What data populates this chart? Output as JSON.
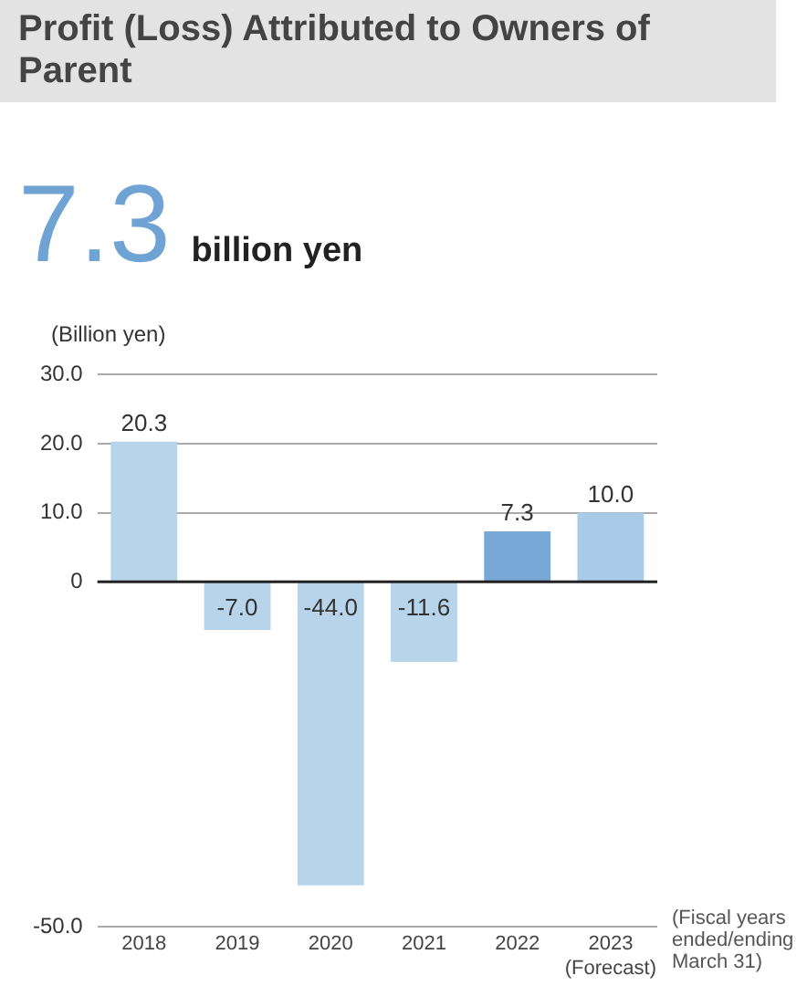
{
  "chart_data": {
    "type": "bar",
    "title": "Profit (Loss) Attributed to Owners of Parent",
    "subtitle": "7.3 billion yen",
    "ylabel": "(Billion yen)",
    "xlabel": "(Fiscal years ended/ending March 31)",
    "categories": [
      "2018",
      "2019",
      "2020",
      "2021",
      "2022",
      "2023\n(Forecast)"
    ],
    "values": [
      20.3,
      -7.0,
      -44.0,
      -11.6,
      7.3,
      10.0
    ],
    "value_labels": [
      "20.3",
      "-7.0",
      "-44.0",
      "-11.6",
      "7.3",
      "10.0"
    ],
    "colors": [
      "#b8d4ea",
      "#b8d4ea",
      "#b8d4ea",
      "#b8d4ea",
      "#78a9d6",
      "#a9cbe9"
    ],
    "ylim": [
      -50,
      30
    ],
    "yticks": [
      {
        "value": -50,
        "label": "-50.0"
      },
      0,
      {
        "value": 10,
        "label": "10.0"
      },
      {
        "value": 20,
        "label": "20.0"
      },
      {
        "value": 30,
        "label": "30.0"
      }
    ],
    "grid": "y"
  }
}
